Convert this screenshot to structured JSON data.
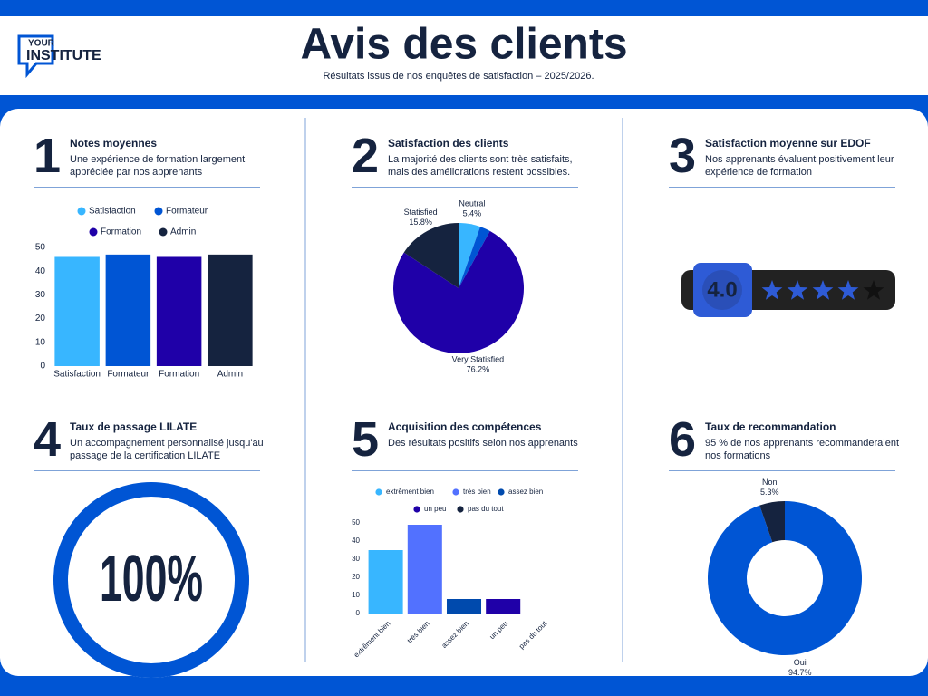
{
  "header": {
    "logo_top": "YOUR",
    "logo_bottom": "INSTITUTE",
    "title": "Avis des clients",
    "subtitle": "Résultats issus de nos enquêtes de satisfaction – 2025/2026."
  },
  "sections": [
    {
      "number": "1",
      "title": "Notes moyennes",
      "description": "Une expérience de formation largement appréciée par nos apprenants"
    },
    {
      "number": "2",
      "title": "Satisfaction des clients",
      "description": "La majorité des clients sont très satisfaits, mais des améliorations restent possibles."
    },
    {
      "number": "3",
      "title": "Satisfaction moyenne sur EDOF",
      "description": "Nos apprenants évaluent positivement leur expérience de formation"
    },
    {
      "number": "4",
      "title": "Taux de passage LILATE",
      "description": "Un accompagnement personnalisé jusqu'au passage de la certification LILATE"
    },
    {
      "number": "5",
      "title": "Acquisition des compétences",
      "description": "Des résultats positifs selon nos apprenants"
    },
    {
      "number": "6",
      "title": "Taux de recommandation",
      "description": "95 % de nos apprenants recommanderaient nos formations"
    }
  ],
  "chart_data": [
    {
      "type": "bar",
      "categories": [
        "Satisfaction",
        "Formateur",
        "Formation",
        "Admin"
      ],
      "values": [
        46,
        47,
        46,
        47
      ],
      "colors": [
        "#38b6ff",
        "#0055d4",
        "#1f00a8",
        "#15233f"
      ],
      "ylim": [
        0,
        50
      ],
      "yticks": [
        0,
        10,
        20,
        30,
        40,
        50
      ]
    },
    {
      "type": "pie",
      "categories": [
        "Neutral",
        null,
        "Very Statisfied",
        "Statisfied"
      ],
      "values": [
        5.4,
        2.6,
        76.2,
        15.8
      ],
      "value_labels": [
        "5.4%",
        null,
        "76.2%",
        "15.8%"
      ],
      "colors": [
        "#38b6ff",
        "#0055d4",
        "#1f00a8",
        "#15233f"
      ]
    },
    {
      "type": "rating",
      "value": 4.0,
      "value_label": "4.0",
      "max": 5,
      "colors": [
        "#2e5bd6",
        "#111111"
      ]
    },
    {
      "type": "ring",
      "value": 100,
      "value_label": "100%",
      "color": "#0055d4"
    },
    {
      "type": "bar",
      "categories": [
        "extrêment bien",
        "très bien",
        "assez bien",
        "un peu",
        "pas du tout"
      ],
      "values": [
        35,
        49,
        8,
        8,
        0
      ],
      "colors": [
        "#38b6ff",
        "#5271ff",
        "#004aad",
        "#1f00a8",
        "#15233f"
      ],
      "ylim": [
        0,
        50
      ],
      "yticks": [
        0,
        10,
        20,
        30,
        40,
        50
      ]
    },
    {
      "type": "donut",
      "categories": [
        "Oui",
        "Non"
      ],
      "values": [
        94.7,
        5.3
      ],
      "value_labels": [
        "94.7%",
        "5.3%"
      ],
      "colors": [
        "#0055d4",
        "#15233f"
      ]
    }
  ]
}
